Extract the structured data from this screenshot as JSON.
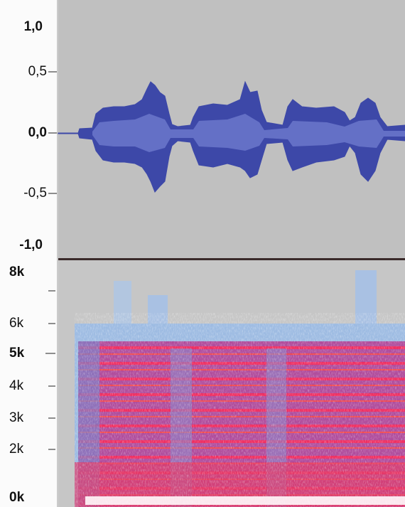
{
  "waveform_axis": {
    "labels": [
      "1,0",
      "0,5",
      "0,0",
      "-0,5",
      "-1,0"
    ]
  },
  "spectrogram_axis": {
    "labels": [
      "8k",
      "6k",
      "5k",
      "4k",
      "3k",
      "2k",
      "0k"
    ]
  }
}
